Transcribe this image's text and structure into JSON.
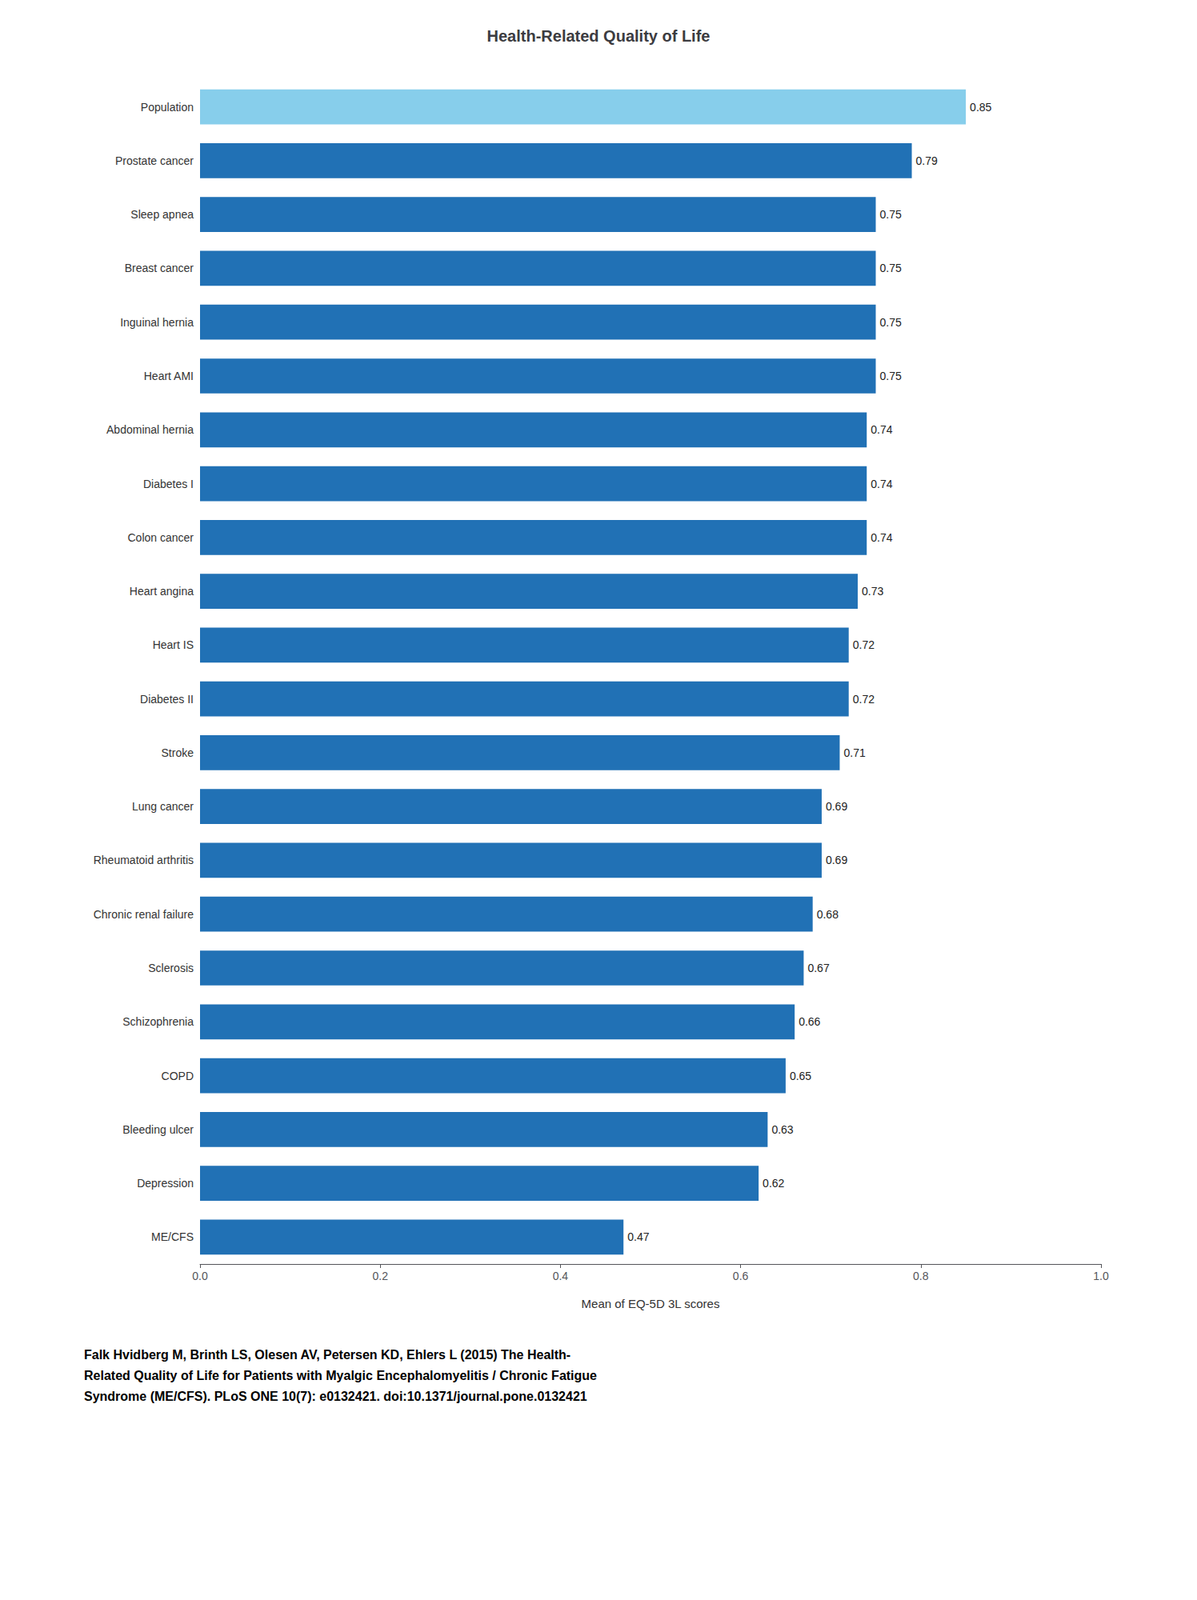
{
  "chart_data": {
    "type": "bar",
    "orientation": "horizontal",
    "title": "Health-Related Quality of Life",
    "xlabel": "Mean of EQ-5D 3L scores",
    "categories": [
      "Population",
      "Prostate cancer",
      "Sleep apnea",
      "Breast cancer",
      "Inguinal hernia",
      "Heart AMI",
      "Abdominal hernia",
      "Diabetes I",
      "Colon cancer",
      "Heart angina",
      "Heart IS",
      "Diabetes II",
      "Stroke",
      "Lung cancer",
      "Rheumatoid arthritis",
      "Chronic renal failure",
      "Sclerosis",
      "Schizophrenia",
      "COPD",
      "Bleeding ulcer",
      "Depression",
      "ME/CFS"
    ],
    "values": [
      0.85,
      0.79,
      0.75,
      0.75,
      0.75,
      0.75,
      0.74,
      0.74,
      0.74,
      0.73,
      0.72,
      0.72,
      0.71,
      0.69,
      0.69,
      0.68,
      0.67,
      0.66,
      0.65,
      0.63,
      0.62,
      0.47
    ],
    "colors": [
      "#87CEEB",
      "#2171B5",
      "#2171B5",
      "#2171B5",
      "#2171B5",
      "#2171B5",
      "#2171B5",
      "#2171B5",
      "#2171B5",
      "#2171B5",
      "#2171B5",
      "#2171B5",
      "#2171B5",
      "#2171B5",
      "#2171B5",
      "#2171B5",
      "#2171B5",
      "#2171B5",
      "#2171B5",
      "#2171B5",
      "#2171B5",
      "#2171B5"
    ],
    "xlim": [
      0.0,
      1.0
    ],
    "xticks": [
      {
        "value": 0,
        "label": "0.0"
      },
      0.2,
      0.4,
      0.6,
      0.8,
      {
        "value": 1,
        "label": "1.0"
      }
    ],
    "data_labels": true,
    "grid": false,
    "annotations": [
      "Falk Hvidberg M, Brinth LS, Olesen AV, Petersen KD, Ehlers L (2015) The Health-\nRelated Quality of Life for Patients with Myalgic Encephalomyelitis / Chronic Fatigue\nSyndrome (ME/CFS). PLoS ONE 10(7): e0132421. doi:10.1371/journal.pone.0132421"
    ]
  }
}
